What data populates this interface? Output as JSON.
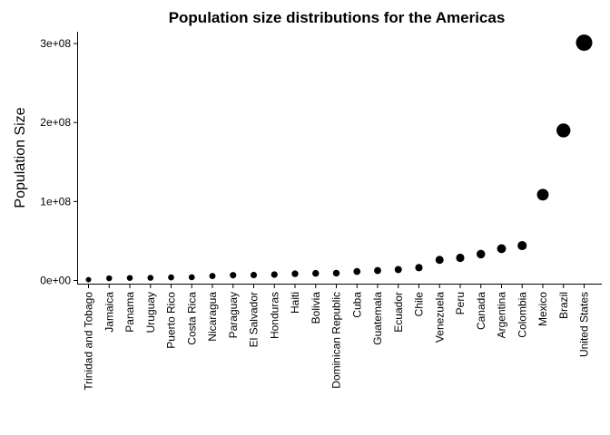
{
  "chart_data": {
    "type": "scatter",
    "title": "Population size distributions for the Americas",
    "xlabel": "",
    "ylabel": "Population Size",
    "categories": [
      "Trinidad and Tobago",
      "Jamaica",
      "Panama",
      "Uruguay",
      "Puerto Rico",
      "Costa Rica",
      "Nicaragua",
      "Paraguay",
      "El Salvador",
      "Honduras",
      "Haiti",
      "Bolivia",
      "Dominican Republic",
      "Cuba",
      "Guatemala",
      "Ecuador",
      "Chile",
      "Venezuela",
      "Peru",
      "Canada",
      "Argentina",
      "Colombia",
      "Mexico",
      "Brazil",
      "United States"
    ],
    "values": [
      1100000,
      2800000,
      3200000,
      3400000,
      3900000,
      4100000,
      5700000,
      6700000,
      6900000,
      7500000,
      8500000,
      9100000,
      9300000,
      11400000,
      12600000,
      13800000,
      16300000,
      26100000,
      28700000,
      33400000,
      40300000,
      44200000,
      108700000,
      190000000,
      301100000
    ],
    "ylim": [
      -4000000,
      315000000
    ],
    "yticks": [
      0,
      100000000,
      200000000,
      300000000
    ],
    "yticklabels": [
      "0e+00",
      "1e+08",
      "2e+08",
      "3e+08"
    ],
    "size_encoding": "population",
    "grid": false,
    "legend": "none"
  }
}
